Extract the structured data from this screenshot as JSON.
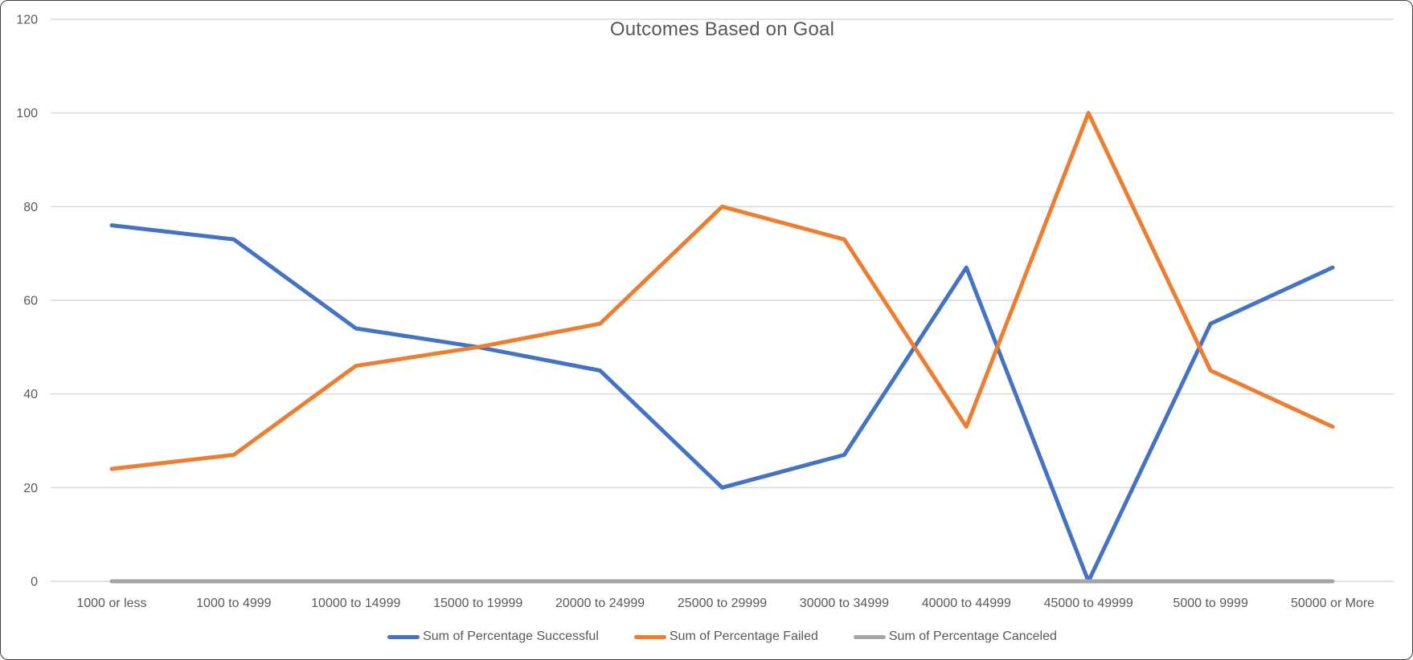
{
  "window": {
    "background": "#ffffff",
    "border_color": "#3f3f3f"
  },
  "chart_data": {
    "type": "line",
    "title": "Outcomes Based on Goal",
    "title_color": "#595959",
    "xlabel": "",
    "ylabel": "",
    "categories": [
      "1000 or less",
      "1000 to 4999",
      "10000 to 14999",
      "15000 to 19999",
      "20000 to 24999",
      "25000 to 29999",
      "30000 to 34999",
      "40000 to 44999",
      "45000 to 49999",
      "5000 to 9999",
      "50000 or More"
    ],
    "series": [
      {
        "name": "Sum of Percentage Successful",
        "color": "#4472C4",
        "values": [
          76,
          73,
          54,
          50,
          45,
          20,
          27,
          67,
          0,
          55,
          67
        ]
      },
      {
        "name": "Sum of Percentage Failed",
        "color": "#ED7D31",
        "values": [
          24,
          27,
          46,
          50,
          55,
          80,
          73,
          33,
          100,
          45,
          33
        ]
      },
      {
        "name": "Sum of Percentage Canceled",
        "color": "#A5A5A5",
        "values": [
          0,
          0,
          0,
          0,
          0,
          0,
          0,
          0,
          0,
          0,
          0
        ]
      }
    ],
    "ylim": [
      0,
      120
    ],
    "ytick_step": 20,
    "ytick_labels": [
      "0",
      "20",
      "40",
      "60",
      "80",
      "100",
      "120"
    ],
    "grid": true,
    "gridline_color": "#D9D9D9",
    "axis_text_color": "#595959",
    "legend_position": "bottom"
  }
}
